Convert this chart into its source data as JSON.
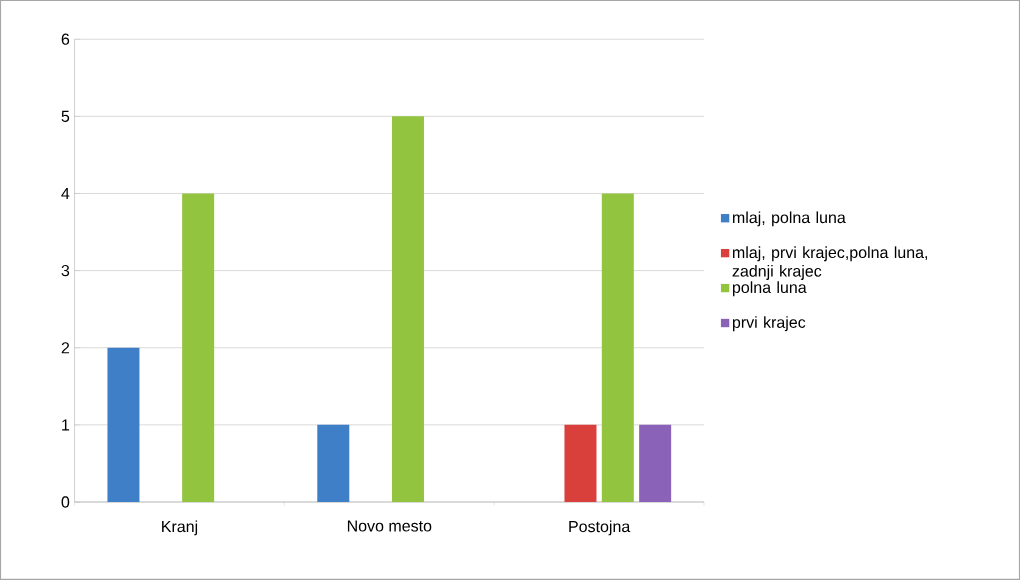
{
  "chart_data": {
    "type": "bar",
    "categories": [
      "Kranj",
      "Novo mesto",
      "Postojna"
    ],
    "series": [
      {
        "name": "mlaj, polna luna",
        "color": "#3f7fc8",
        "values": [
          2,
          1,
          null
        ]
      },
      {
        "name": "mlaj, prvi krajec,polna luna, zadnji krajec",
        "color": "#d9403c",
        "values": [
          null,
          null,
          1
        ]
      },
      {
        "name": "polna luna",
        "color": "#92c440",
        "values": [
          4,
          5,
          4
        ]
      },
      {
        "name": "prvi krajec",
        "color": "#8a62b8",
        "values": [
          null,
          null,
          1
        ]
      }
    ],
    "ylim": [
      0,
      6
    ],
    "yticks": [
      0,
      1,
      2,
      3,
      4,
      5,
      6
    ],
    "grid": "y",
    "legend": "right"
  }
}
